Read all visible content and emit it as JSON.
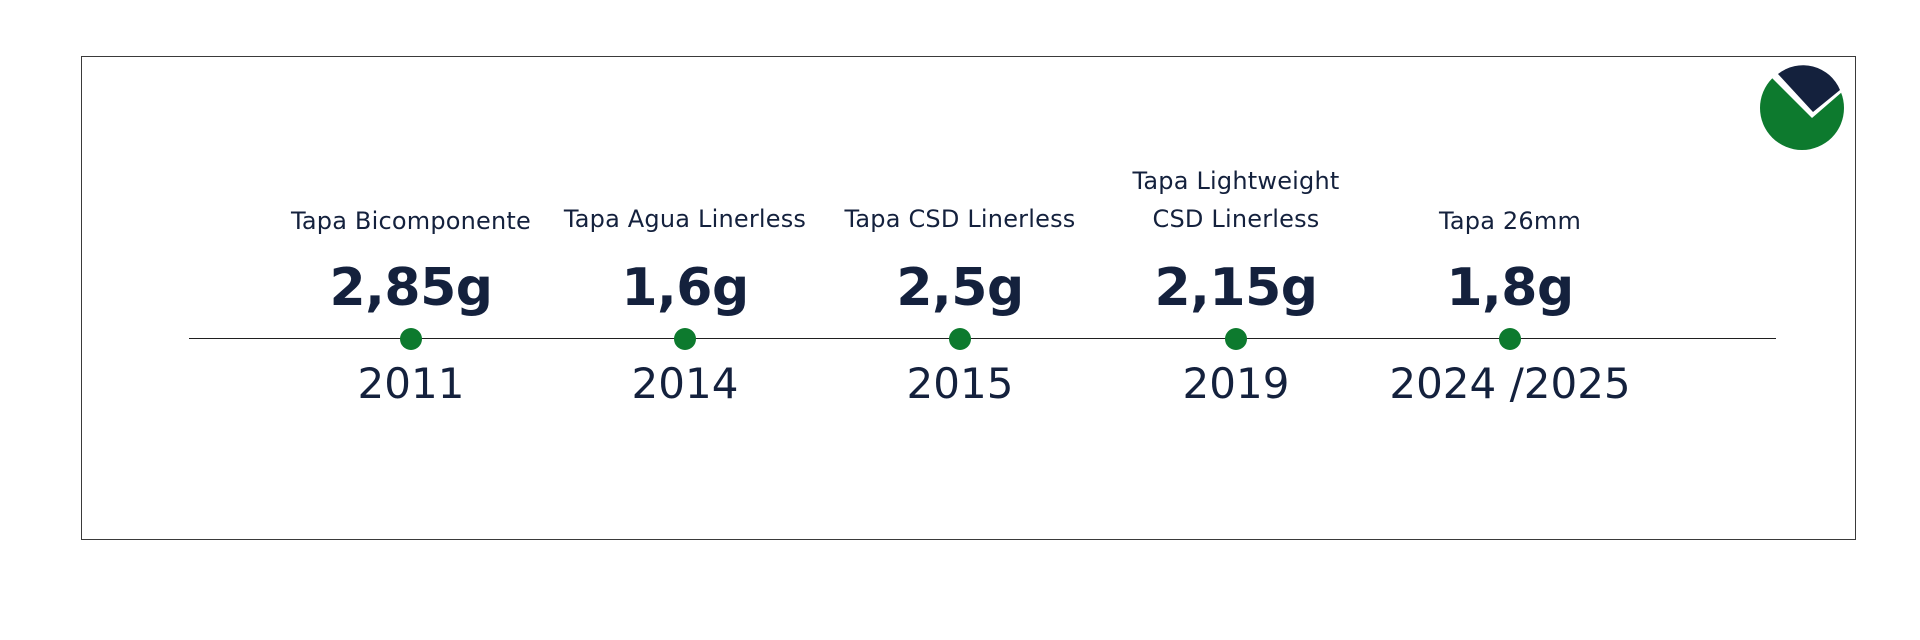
{
  "timeline": {
    "milestones": [
      {
        "label_lines": [
          "Tapa Bicomponente"
        ],
        "value": "2,85g",
        "year": "2011"
      },
      {
        "label_lines": [
          "Tapa Agua Linerless"
        ],
        "value": "1,6g",
        "year": "2014"
      },
      {
        "label_lines": [
          "Tapa CSD Linerless"
        ],
        "value": "2,5g",
        "year": "2015"
      },
      {
        "label_lines": [
          "Tapa Lightweight",
          "CSD Linerless"
        ],
        "value": "2,15g",
        "year": "2019"
      },
      {
        "label_lines": [
          "Tapa 26mm"
        ],
        "value": "1,8g",
        "year": "2024 /2025"
      }
    ]
  },
  "colors": {
    "text": "#14213d",
    "accent_green": "#0d7a2e",
    "logo_navy": "#14213d"
  },
  "logo": {
    "icon": "company-logo-icon"
  }
}
